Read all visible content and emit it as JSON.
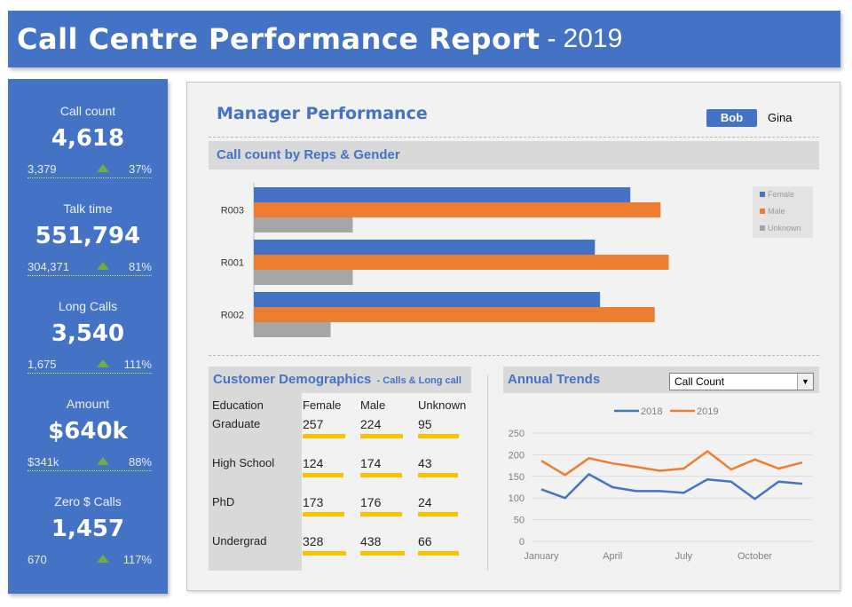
{
  "header": {
    "title": "Call Centre Performance Report",
    "separator": "-",
    "year": "2019"
  },
  "colors": {
    "brand": "#4472c4",
    "female": "#4472c4",
    "male": "#ed7d31",
    "unknown": "#a5a5a5",
    "up": "#70ad47",
    "bar_accent": "#ffc000"
  },
  "kpis": [
    {
      "label": "Call count",
      "value": "4,618",
      "previous": "3,379",
      "change": "37%",
      "trend_icon": "up-arrow-icon"
    },
    {
      "label": "Talk time",
      "value": "551,794",
      "previous": "304,371",
      "change": "81%",
      "trend_icon": "up-arrow-icon"
    },
    {
      "label": "Long Calls",
      "value": "3,540",
      "previous": "1,675",
      "change": "111%",
      "trend_icon": "up-arrow-icon"
    },
    {
      "label": "Amount",
      "value": "$640k",
      "previous": "$341k",
      "change": "88%",
      "trend_icon": "up-arrow-icon"
    },
    {
      "label": "Zero $ Calls",
      "value": "1,457",
      "previous": "670",
      "change": "117%",
      "trend_icon": "up-arrow-icon"
    }
  ],
  "manager": {
    "title": "Manager Performance",
    "slicer": [
      {
        "label": "Bob",
        "selected": true
      },
      {
        "label": "Gina",
        "selected": false
      }
    ]
  },
  "reps_section": {
    "title": "Call count by Reps & Gender"
  },
  "demographics": {
    "title": "Customer Demographics",
    "subtitle": "- Calls & Long call",
    "columns": [
      "Education",
      "Female",
      "Male",
      "Unknown"
    ],
    "rows": [
      {
        "label": "Graduate",
        "values": [
          257,
          224,
          95
        ]
      },
      {
        "label": "High School",
        "values": [
          124,
          174,
          43
        ]
      },
      {
        "label": "PhD",
        "values": [
          173,
          176,
          24
        ]
      },
      {
        "label": "Undergrad",
        "values": [
          328,
          438,
          66
        ]
      }
    ]
  },
  "annual": {
    "title": "Annual Trends",
    "dropdown_value": "Call Count",
    "dropdown_icon": "chevron-down-icon"
  },
  "chart_data": [
    {
      "type": "bar",
      "orientation": "horizontal",
      "title": "Call count by Reps & Gender",
      "categories": [
        "R003",
        "R001",
        "R002"
      ],
      "series": [
        {
          "name": "Female",
          "values": [
            510,
            462,
            469
          ]
        },
        {
          "name": "Male",
          "values": [
            551,
            562,
            543
          ]
        },
        {
          "name": "Unknown",
          "values": [
            134,
            134,
            104
          ]
        }
      ],
      "xlim": [
        0,
        660
      ],
      "legend": "top-right"
    },
    {
      "type": "line",
      "title": "Annual Trends",
      "x": [
        "January",
        "February",
        "March",
        "April",
        "May",
        "June",
        "July",
        "August",
        "September",
        "October",
        "November",
        "December"
      ],
      "x_tick_labels": [
        "January",
        "April",
        "July",
        "October"
      ],
      "series": [
        {
          "name": "2018",
          "values": [
            120,
            100,
            155,
            125,
            116,
            116,
            112,
            143,
            138,
            98,
            138,
            133
          ]
        },
        {
          "name": "2019",
          "values": [
            186,
            153,
            192,
            180,
            172,
            163,
            168,
            208,
            166,
            189,
            168,
            182
          ]
        }
      ],
      "ylim": [
        0,
        250
      ],
      "yticks": [
        0,
        50,
        100,
        150,
        200,
        250
      ],
      "legend": "top"
    }
  ]
}
